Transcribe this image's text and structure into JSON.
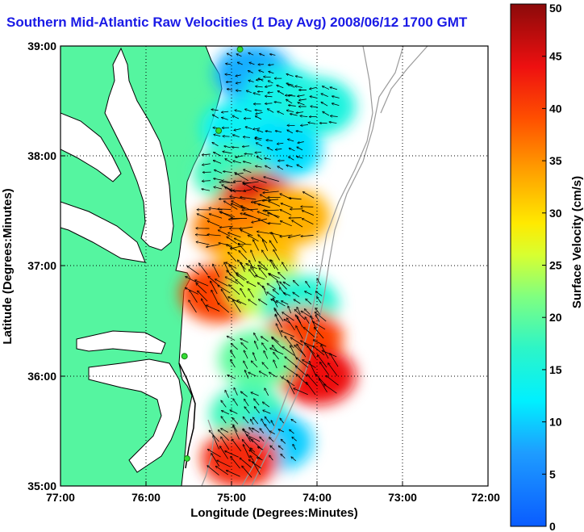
{
  "title": "Southern Mid-Atlantic Raw Velocities (1 Day Avg) 2008/06/12 1700 GMT",
  "x_axis": {
    "label": "Longitude (Degrees:Minutes)",
    "ticks": [
      "77:00",
      "76:00",
      "75:00",
      "74:00",
      "73:00",
      "72:00"
    ]
  },
  "y_axis": {
    "label": "Latitude (Degrees:Minutes)",
    "ticks": [
      "39:00",
      "38:00",
      "37:00",
      "36:00",
      "35:00"
    ]
  },
  "colorbar": {
    "label": "Surface Velocity (cm/s)",
    "range": [
      0,
      50
    ],
    "ticks": [
      "0",
      "5",
      "10",
      "15",
      "20",
      "25",
      "30",
      "35",
      "40",
      "45",
      "50"
    ]
  },
  "chart_data": {
    "type": "heatmap",
    "title": "Southern Mid-Atlantic Raw Velocities (1 Day Avg) 2008/06/12 1700 GMT",
    "xlabel": "Longitude (Degrees:Minutes)",
    "ylabel": "Latitude (Degrees:Minutes)",
    "xlim": [
      -77,
      -72
    ],
    "ylim": [
      35,
      39
    ],
    "colorbar_range": [
      0,
      50
    ],
    "colorbar_label": "Surface Velocity (cm/s)",
    "grid": true,
    "colors": {
      "land": "#55f5a0",
      "water_background": "#ffffff",
      "coastline": "#000000",
      "grid": "#000000",
      "bathymetry": "#9a9a9a",
      "stations": "#33dd33"
    },
    "stations": [
      {
        "lon": -74.9,
        "lat": 38.97
      },
      {
        "lon": -75.15,
        "lat": 38.23
      },
      {
        "lon": -75.55,
        "lat": 36.18
      },
      {
        "lon": -75.52,
        "lat": 35.25
      }
    ],
    "velocity_regions": [
      {
        "lon": -74.75,
        "lat": 38.75,
        "speed": 8
      },
      {
        "lon": -74.4,
        "lat": 38.55,
        "speed": 14
      },
      {
        "lon": -74.0,
        "lat": 38.45,
        "speed": 15
      },
      {
        "lon": -74.9,
        "lat": 38.25,
        "speed": 13
      },
      {
        "lon": -74.4,
        "lat": 38.05,
        "speed": 11
      },
      {
        "lon": -75.0,
        "lat": 37.85,
        "speed": 18
      },
      {
        "lon": -74.7,
        "lat": 37.6,
        "speed": 45
      },
      {
        "lon": -74.3,
        "lat": 37.45,
        "speed": 33
      },
      {
        "lon": -75.0,
        "lat": 37.35,
        "speed": 36
      },
      {
        "lon": -74.7,
        "lat": 37.05,
        "speed": 32
      },
      {
        "lon": -75.15,
        "lat": 36.75,
        "speed": 40
      },
      {
        "lon": -74.6,
        "lat": 36.8,
        "speed": 25
      },
      {
        "lon": -74.2,
        "lat": 36.65,
        "speed": 16
      },
      {
        "lon": -74.15,
        "lat": 36.35,
        "speed": 40
      },
      {
        "lon": -74.0,
        "lat": 36.0,
        "speed": 44
      },
      {
        "lon": -74.7,
        "lat": 36.15,
        "speed": 20
      },
      {
        "lon": -74.8,
        "lat": 35.65,
        "speed": 18
      },
      {
        "lon": -74.5,
        "lat": 35.4,
        "speed": 10
      },
      {
        "lon": -74.9,
        "lat": 35.25,
        "speed": 42
      }
    ]
  }
}
